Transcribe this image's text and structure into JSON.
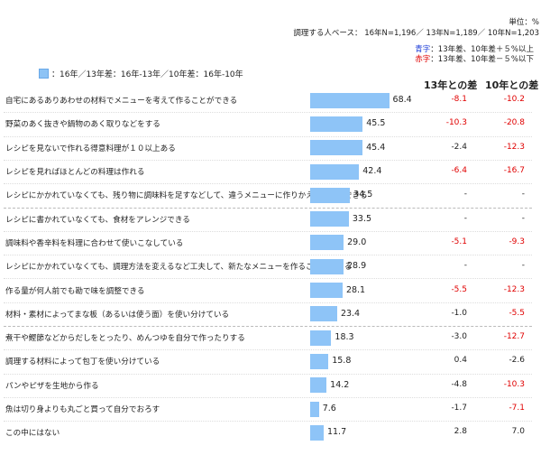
{
  "header": {
    "unit": "単位：%",
    "base": "調理する人ベース： 16年N=1,196／ 13年N=1,189／ 10年N=1,203",
    "note_blue_prefix": "青字",
    "note_blue_text": "：13年差、10年差＋５%以上",
    "note_red_prefix": "赤字",
    "note_red_text": "：13年差、10年差－５%以下",
    "legend_text": "：16年／13年差：16年-13年／10年差：16年-10年",
    "col13": "13年との差",
    "col10": "10年との差"
  },
  "colors": {
    "bar": "#8ec4f7",
    "negative": "#e00000",
    "positive_blue": "#1f3fd8"
  },
  "chart_data": {
    "type": "bar",
    "orientation": "horizontal",
    "categories": [
      "自宅にあるありあわせの材料でメニューを考えて作ることができる",
      "野菜のあく抜きや鍋物のあく取りなどをする",
      "レシピを見ないで作れる得意料理が１０以上ある",
      "レシピを見ればほとんどの料理は作れる",
      "レシピにかかれていなくても、残り物に調味料を足すなどして、違うメニューに作りかえることができる",
      "レシピに書かれていなくても、食材をアレンジできる",
      "調味料や香辛料を料理に合わせて使いこなしている",
      "レシピにかかれていなくても、調理方法を変えるなど工夫して、新たなメニューを作ることができる",
      "作る量が何人前でも勘で味を調整できる",
      "材料・素材によってまな板（あるいは使う面）を使い分けている",
      "煮干や鰹節などからだしをとったり、めんつゆを自分で作ったりする",
      "調理する材料によって包丁を使い分けている",
      "パンやピザを生地から作る",
      "魚は切り身よりも丸ごと買って自分でおろす",
      "この中にはない"
    ],
    "values": [
      68.4,
      45.5,
      45.4,
      42.4,
      34.5,
      33.5,
      29.0,
      28.9,
      28.1,
      23.4,
      18.3,
      15.8,
      14.2,
      7.6,
      11.7
    ],
    "value_labels": [
      "68.4",
      "45.5",
      "45.4",
      "42.4",
      "34.5",
      "33.5",
      "29.0",
      "28.9",
      "28.1",
      "23.4",
      "18.3",
      "15.8",
      "14.2",
      "7.6",
      "11.7"
    ],
    "diff13": [
      "-8.1",
      "-10.3",
      "-2.4",
      "-6.4",
      "-",
      "-",
      "-5.1",
      "-",
      "-5.5",
      "-1.0",
      "-3.0",
      "0.4",
      "-4.8",
      "-1.7",
      "2.8"
    ],
    "diff10": [
      "-10.2",
      "-20.8",
      "-12.3",
      "-16.7",
      "-",
      "-",
      "-9.3",
      "-",
      "-12.3",
      "-5.5",
      "-12.7",
      "-2.6",
      "-10.3",
      "-7.1",
      "7.0"
    ],
    "xlim": [
      0,
      100
    ],
    "grid": false,
    "legend": "top-left"
  }
}
